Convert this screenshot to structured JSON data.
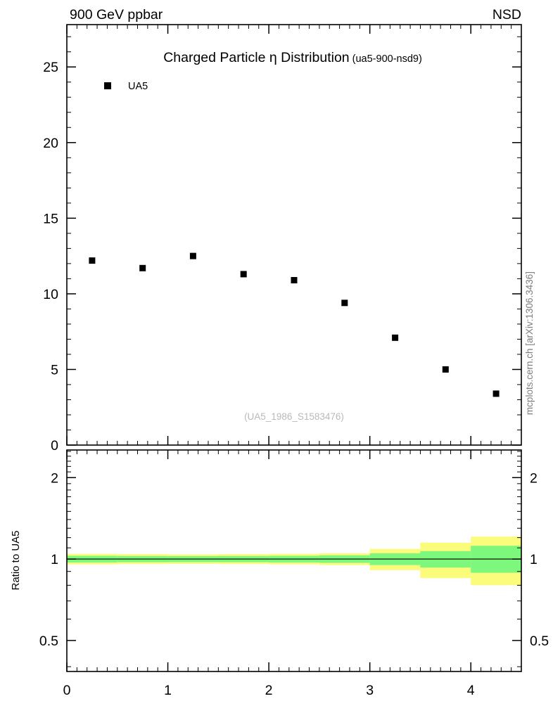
{
  "header": {
    "left": "900 GeV ppbar",
    "right": "NSD"
  },
  "main_panel": {
    "title": "Charged Particle η Distribution",
    "subtitle": "(ua5-900-nsd9)",
    "legend": {
      "label": "UA5",
      "marker": "filled-square",
      "marker_color": "#000000"
    },
    "watermark": "(UA5_1986_S1583476)",
    "side_text": "mcplots.cern.ch [arXiv:1306.3436]"
  },
  "ratio_panel": {
    "ylabel": "Ratio to UA5"
  },
  "chart_data": [
    {
      "type": "scatter",
      "title": "Charged Particle η Distribution (ua5-900-nsd9)",
      "xlim": [
        0,
        4.5
      ],
      "ylim": [
        0,
        27.8
      ],
      "xticks": [
        0,
        1,
        2,
        3,
        4
      ],
      "yticks": [
        0,
        5,
        10,
        15,
        20,
        25
      ],
      "grid": false,
      "legend_position": "top-left",
      "series": [
        {
          "name": "UA5",
          "marker": "filled-square",
          "color": "#000000",
          "x": [
            0.25,
            0.75,
            1.25,
            1.75,
            2.25,
            2.75,
            3.25,
            3.75,
            4.25
          ],
          "y": [
            12.2,
            11.7,
            12.5,
            11.3,
            10.9,
            9.4,
            7.1,
            5.0,
            3.4
          ]
        }
      ]
    },
    {
      "type": "band",
      "ylabel": "Ratio to UA5",
      "yscale": "log",
      "xlim": [
        0,
        4.5
      ],
      "ylim": [
        0.384,
        2.53
      ],
      "yticks": [
        0.5,
        1,
        2
      ],
      "xticks": [
        0,
        1,
        2,
        3,
        4
      ],
      "bin_edges": [
        0,
        0.5,
        1,
        1.5,
        2,
        2.5,
        3,
        3.5,
        4,
        4.5
      ],
      "bands": [
        {
          "name": "total-uncertainty",
          "color": "#fbfb7c",
          "lo": [
            0.955,
            0.958,
            0.96,
            0.958,
            0.955,
            0.95,
            0.91,
            0.85,
            0.8
          ],
          "hi": [
            1.045,
            1.042,
            1.04,
            1.042,
            1.045,
            1.05,
            1.09,
            1.15,
            1.21
          ]
        },
        {
          "name": "stat-uncertainty",
          "color": "#7df87d",
          "lo": [
            0.972,
            0.974,
            0.975,
            0.974,
            0.972,
            0.968,
            0.95,
            0.93,
            0.89
          ],
          "hi": [
            1.028,
            1.026,
            1.025,
            1.026,
            1.028,
            1.032,
            1.05,
            1.07,
            1.12
          ]
        }
      ],
      "reference_line": 1
    }
  ]
}
